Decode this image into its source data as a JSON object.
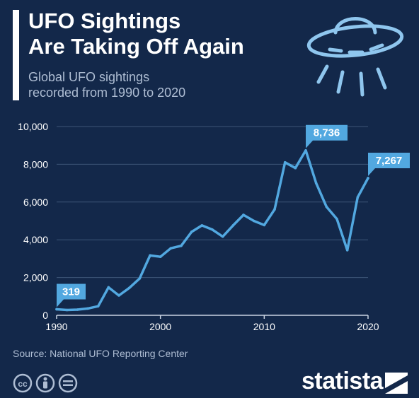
{
  "header": {
    "title_line1": "UFO Sightings",
    "title_line2": "Are Taking Off Again",
    "subtitle_line1": "Global UFO sightings",
    "subtitle_line2": "recorded from 1990 to 2020"
  },
  "footer": {
    "source": "Source: National UFO Reporting Center",
    "brand": "statista",
    "license_icons": [
      "cc-icon",
      "person-icon",
      "equals-icon"
    ]
  },
  "colors": {
    "background": "#13284a",
    "line": "#52a8e0",
    "callout": "#52a8e0",
    "grid": "#3d5577",
    "text_muted": "#aebdd3"
  },
  "chart_data": {
    "type": "line",
    "title": "UFO Sightings Are Taking Off Again",
    "subtitle": "Global UFO sightings recorded from 1990 to 2020",
    "xlabel": "",
    "ylabel": "",
    "x": [
      1990,
      1991,
      1992,
      1993,
      1994,
      1995,
      1996,
      1997,
      1998,
      1999,
      2000,
      2001,
      2002,
      2003,
      2004,
      2005,
      2006,
      2007,
      2008,
      2009,
      2010,
      2011,
      2012,
      2013,
      2014,
      2015,
      2016,
      2017,
      2018,
      2019,
      2020
    ],
    "series": [
      {
        "values": [
          319,
          280,
          300,
          360,
          480,
          1480,
          1050,
          1450,
          1950,
          3170,
          3100,
          3550,
          3680,
          4420,
          4760,
          4540,
          4170,
          4760,
          5320,
          5000,
          4780,
          5610,
          8100,
          7800,
          8736,
          7000,
          5750,
          5100,
          3450,
          6250,
          7267
        ]
      }
    ],
    "ylim": [
      0,
      10000
    ],
    "yticks": [
      0,
      2000,
      4000,
      6000,
      8000,
      10000
    ],
    "ytick_labels": [
      "0",
      "2,000",
      "4,000",
      "6,000",
      "8,000",
      "10,000"
    ],
    "xticks": [
      1990,
      2000,
      2010,
      2020
    ],
    "xtick_labels": [
      "1990",
      "2000",
      "2010",
      "2020"
    ],
    "grid": true,
    "annotations": [
      {
        "x": 1990,
        "value": 319,
        "label": "319"
      },
      {
        "x": 2014,
        "value": 8736,
        "label": "8,736"
      },
      {
        "x": 2020,
        "value": 7267,
        "label": "7,267"
      }
    ]
  }
}
